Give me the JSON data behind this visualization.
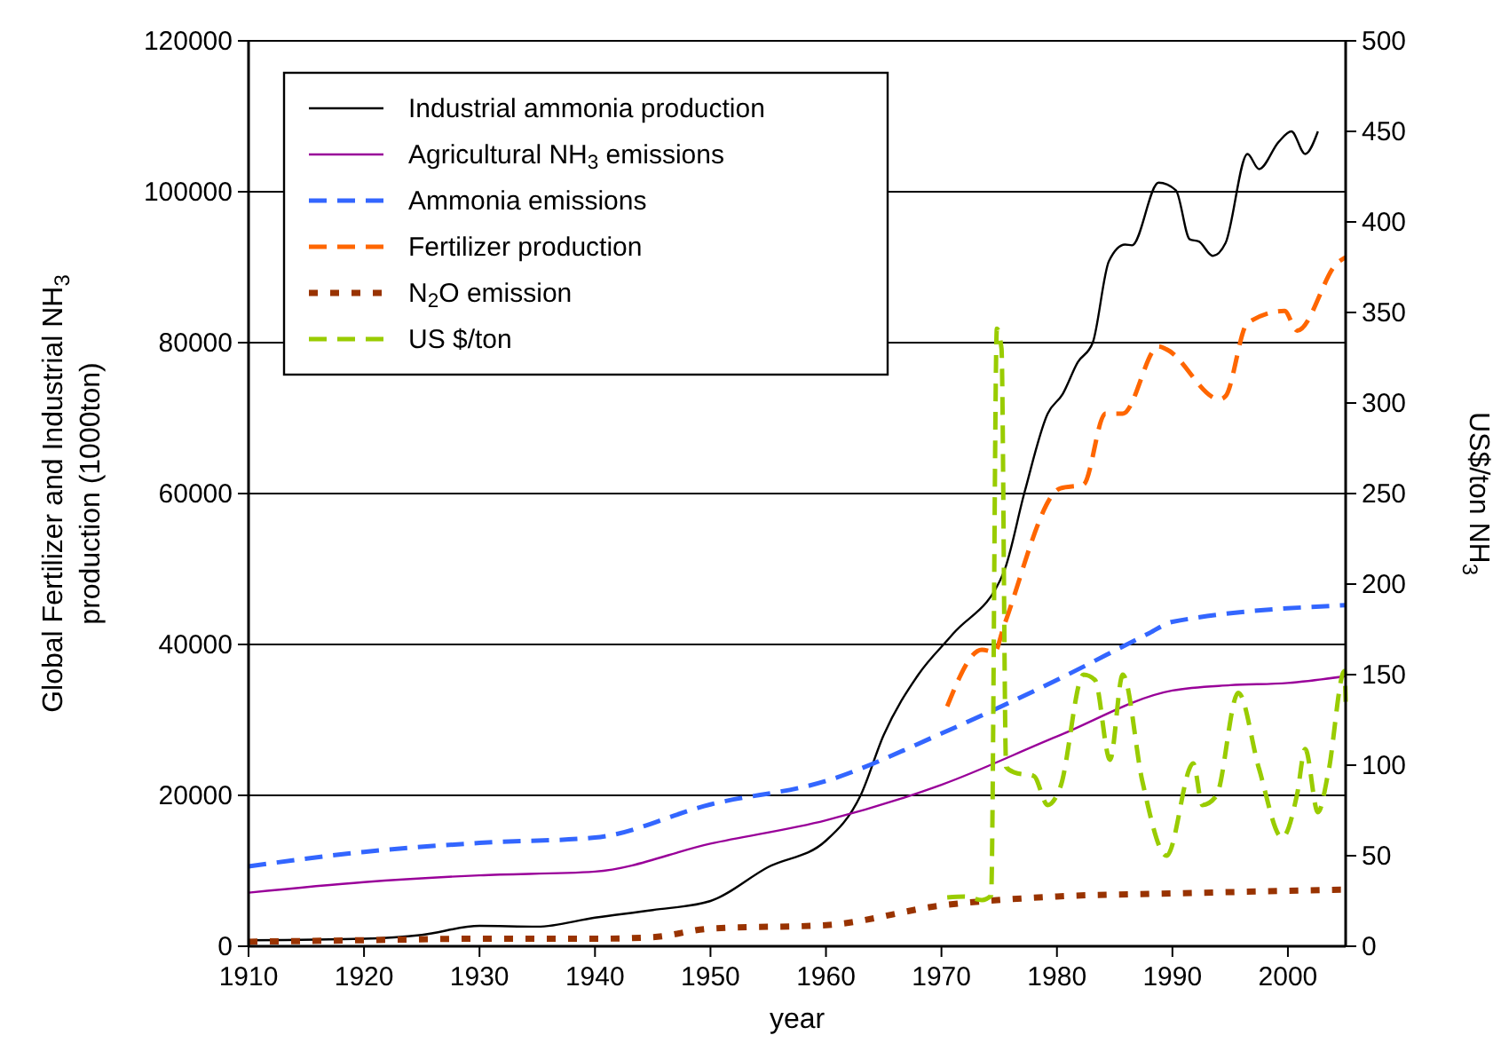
{
  "chart_data": {
    "type": "line",
    "xlabel": "year",
    "ylabel": "Global Fertilizer and Industrial NH$_{3}$ production (1000ton)",
    "y2label": "US$/ton NH$_{3}$",
    "xlim": [
      1910,
      2005
    ],
    "xticks": [
      1910,
      1920,
      1930,
      1940,
      1950,
      1960,
      1970,
      1980,
      1990,
      2000
    ],
    "ylim": [
      0,
      120000
    ],
    "yticks": [
      0,
      20000,
      40000,
      60000,
      80000,
      100000,
      120000
    ],
    "y2lim": [
      0,
      500
    ],
    "y2ticks": [
      0,
      50,
      100,
      150,
      200,
      250,
      300,
      350,
      400,
      450,
      500
    ],
    "grid": "y",
    "legend": "top left",
    "marker": "none",
    "series": [
      {
        "name": "Industrial ammonia production",
        "color": "#000000",
        "line_style": "solid",
        "x": [
          1910,
          1920,
          1925,
          1930,
          1935,
          1940,
          1945,
          1950,
          1955,
          1960,
          1963,
          1965,
          1968,
          1971,
          1975.4,
          1977.2,
          1979.2,
          1980.5,
          1981.8,
          1983.1,
          1984.5,
          1985.9,
          1986.5,
          1988.8,
          1990.3,
          1991.5,
          1992.3,
          1993.5,
          1994.6,
          1996.5,
          1997.5,
          1999.2,
          2000.3,
          2001.5,
          2002.6
        ],
        "values": [
          800,
          1000,
          1500,
          2700,
          2600,
          3800,
          4800,
          6000,
          10500,
          14000,
          20000,
          28000,
          36000,
          41400,
          49600,
          60200,
          70600,
          73200,
          77400,
          80000,
          90800,
          93000,
          92900,
          101200,
          100200,
          93700,
          93400,
          91500,
          93200,
          105000,
          103000,
          106600,
          108000,
          105000,
          108000
        ]
      },
      {
        "name": "Agricultural NH$_{3}$ emissions",
        "color": "#990099",
        "line_style": "solid",
        "x": [
          1910,
          1920,
          1930,
          1940,
          1950,
          1960,
          1970,
          1980,
          1990,
          1995,
          2000,
          2005
        ],
        "values": [
          7100,
          8500,
          9400,
          9900,
          13600,
          16700,
          21400,
          27800,
          33900,
          34600,
          34900,
          35800
        ]
      },
      {
        "name": "Ammonia emissions",
        "color": "#3366ff",
        "line_style": "dashed",
        "x": [
          1910,
          1920,
          1930,
          1940,
          1950,
          1960,
          1970,
          1980,
          1988,
          1990,
          2005
        ],
        "values": [
          10600,
          12500,
          13700,
          14400,
          18800,
          21900,
          28200,
          35300,
          41500,
          43000,
          45200
        ]
      },
      {
        "name": "Fertilizer production",
        "color": "#ff6600",
        "line_style": "dashed",
        "x": [
          1970.5,
          1973.5,
          1974.6,
          1975.4,
          1980.3,
          1982.3,
          1984.2,
          1985.7,
          1988.8,
          1989.5,
          1994.1,
          1994.6,
          1996.5,
          1999.7,
          2000.8,
          2004.3,
          2005
        ],
        "values": [
          31800,
          39300,
          39000,
          42400,
          60700,
          61200,
          70600,
          70600,
          79500,
          79100,
          72500,
          72900,
          82600,
          84200,
          81600,
          90600,
          91300
        ]
      },
      {
        "name": "N$_{2}$O emission",
        "color": "#993300",
        "line_style": "dotted",
        "x": [
          1910,
          1920,
          1930,
          1940,
          1945,
          1950,
          1960,
          1970,
          1980,
          1990,
          2005
        ],
        "values": [
          600,
          800,
          1000,
          1000,
          1200,
          2350,
          2800,
          5400,
          6600,
          7000,
          7500
        ]
      },
      {
        "name": "US $/ton",
        "color": "#99cc00",
        "line_style": "dashed",
        "axis": "y2",
        "x": [
          1970.5,
          1972,
          1973.5,
          1974.3,
          1974.8,
          1975.2,
          1975.6,
          1976.3,
          1978,
          1979.2,
          1980.3,
          1982.3,
          1983.3,
          1984.6,
          1985.7,
          1987.4,
          1989.5,
          1991.8,
          1992.6,
          1993.8,
          1995.7,
          1997.5,
          1999.5,
          2000.8,
          2001.5,
          2002.6,
          2003.5,
          2004.9,
          2005
        ],
        "values": [
          27,
          27.5,
          25.5,
          28,
          341,
          330,
          99,
          96,
          94,
          78,
          88,
          150,
          147,
          103,
          150,
          91,
          50,
          101,
          78,
          83,
          140,
          98,
          60,
          84,
          109,
          74,
          96,
          152,
          135
        ]
      }
    ]
  }
}
